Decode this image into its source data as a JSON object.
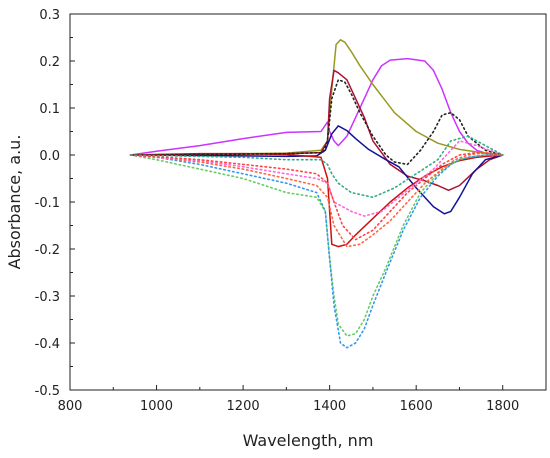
{
  "chart_data": {
    "type": "line",
    "title": "",
    "xlabel": "Wavelength, nm",
    "ylabel": "Absorbance, a.u.",
    "xlim": [
      800,
      1900
    ],
    "ylim": [
      -0.5,
      0.3
    ],
    "xticks": [
      800,
      1000,
      1200,
      1400,
      1600,
      1800
    ],
    "yticks": [
      -0.5,
      -0.4,
      -0.3,
      -0.2,
      -0.1,
      0.0,
      0.1,
      0.2,
      0.3
    ],
    "xtick_labels": [
      "800",
      "1000",
      "1200",
      "1400",
      "1600",
      "1800"
    ],
    "ytick_labels": [
      "-0.5",
      "-0.4",
      "-0.3",
      "-0.2",
      "-0.1",
      "0.0",
      "0.1",
      "0.2",
      "0.3"
    ],
    "grid": false,
    "legend": "none",
    "series": [
      {
        "color": "#cc33ff",
        "style": "solid",
        "x": [
          940,
          1000,
          1100,
          1200,
          1300,
          1380,
          1395,
          1400,
          1410,
          1420,
          1440,
          1460,
          1480,
          1500,
          1520,
          1540,
          1580,
          1620,
          1640,
          1660,
          1680,
          1700,
          1720,
          1740,
          1760,
          1780,
          1800
        ],
        "y": [
          0.0,
          0.008,
          0.02,
          0.035,
          0.048,
          0.05,
          0.07,
          0.05,
          0.03,
          0.02,
          0.04,
          0.08,
          0.12,
          0.16,
          0.19,
          0.202,
          0.205,
          0.2,
          0.18,
          0.14,
          0.09,
          0.05,
          0.025,
          0.01,
          0.004,
          0.001,
          0.0
        ]
      },
      {
        "color": "#999922",
        "style": "solid",
        "x": [
          940,
          1100,
          1200,
          1300,
          1380,
          1395,
          1405,
          1415,
          1425,
          1435,
          1450,
          1470,
          1500,
          1550,
          1600,
          1650,
          1700,
          1750,
          1800
        ],
        "y": [
          0.0,
          0.002,
          0.003,
          0.004,
          0.01,
          0.03,
          0.14,
          0.235,
          0.245,
          0.24,
          0.22,
          0.19,
          0.15,
          0.09,
          0.05,
          0.025,
          0.012,
          0.005,
          0.0
        ]
      },
      {
        "color": "#aa1133",
        "style": "solid",
        "x": [
          940,
          1100,
          1200,
          1300,
          1380,
          1395,
          1400,
          1410,
          1420,
          1440,
          1460,
          1480,
          1500,
          1540,
          1580,
          1620,
          1650,
          1675,
          1700,
          1740,
          1770,
          1800
        ],
        "y": [
          0.0,
          0.002,
          0.002,
          0.003,
          0.005,
          0.03,
          0.12,
          0.18,
          0.175,
          0.16,
          0.12,
          0.08,
          0.03,
          -0.02,
          -0.045,
          -0.055,
          -0.065,
          -0.075,
          -0.065,
          -0.03,
          -0.01,
          0.0
        ]
      },
      {
        "color": "#111199",
        "style": "solid",
        "x": [
          940,
          1100,
          1200,
          1300,
          1370,
          1390,
          1405,
          1420,
          1440,
          1460,
          1490,
          1530,
          1560,
          1600,
          1640,
          1665,
          1680,
          1700,
          1730,
          1760,
          1800
        ],
        "y": [
          0.0,
          -0.001,
          -0.002,
          -0.003,
          -0.002,
          0.01,
          0.045,
          0.062,
          0.052,
          0.035,
          0.012,
          -0.01,
          -0.025,
          -0.07,
          -0.11,
          -0.125,
          -0.12,
          -0.09,
          -0.04,
          -0.01,
          0.0
        ]
      },
      {
        "color": "#cc1111",
        "style": "solid",
        "x": [
          940,
          1000,
          1100,
          1200,
          1300,
          1380,
          1395,
          1405,
          1420,
          1440,
          1460,
          1500,
          1540,
          1580,
          1620,
          1660,
          1700,
          1740,
          1800
        ],
        "y": [
          0.0,
          0.001,
          0.003,
          0.003,
          0.001,
          -0.005,
          -0.05,
          -0.19,
          -0.195,
          -0.19,
          -0.17,
          -0.135,
          -0.1,
          -0.07,
          -0.045,
          -0.025,
          -0.012,
          -0.005,
          0.0
        ]
      },
      {
        "color": "#222222",
        "style": "dotted",
        "x": [
          940,
          1100,
          1200,
          1300,
          1385,
          1395,
          1405,
          1420,
          1435,
          1450,
          1470,
          1500,
          1530,
          1550,
          1580,
          1610,
          1640,
          1660,
          1680,
          1700,
          1720,
          1760,
          1800
        ],
        "y": [
          0.0,
          0.001,
          0.002,
          0.003,
          0.005,
          0.03,
          0.12,
          0.16,
          0.155,
          0.13,
          0.09,
          0.04,
          0.0,
          -0.015,
          -0.02,
          0.01,
          0.05,
          0.085,
          0.09,
          0.075,
          0.04,
          0.01,
          0.0
        ]
      },
      {
        "color": "#66cc66",
        "style": "dotted",
        "x": [
          940,
          1000,
          1100,
          1200,
          1300,
          1370,
          1390,
          1400,
          1410,
          1420,
          1440,
          1460,
          1480,
          1500,
          1530,
          1570,
          1610,
          1650,
          1680,
          1700,
          1720,
          1760,
          1800
        ],
        "y": [
          0.0,
          -0.01,
          -0.03,
          -0.05,
          -0.08,
          -0.09,
          -0.12,
          -0.22,
          -0.3,
          -0.36,
          -0.385,
          -0.38,
          -0.35,
          -0.3,
          -0.24,
          -0.15,
          -0.08,
          -0.04,
          -0.02,
          -0.01,
          -0.005,
          0.0,
          0.0
        ]
      },
      {
        "color": "#3399ee",
        "style": "dotted",
        "x": [
          940,
          1000,
          1100,
          1200,
          1300,
          1370,
          1390,
          1400,
          1410,
          1425,
          1440,
          1460,
          1480,
          1500,
          1530,
          1570,
          1610,
          1650,
          1680,
          1700,
          1720,
          1760,
          1800
        ],
        "y": [
          0.0,
          -0.005,
          -0.02,
          -0.04,
          -0.06,
          -0.08,
          -0.12,
          -0.22,
          -0.32,
          -0.4,
          -0.41,
          -0.4,
          -0.37,
          -0.32,
          -0.25,
          -0.16,
          -0.09,
          -0.045,
          -0.02,
          -0.01,
          -0.005,
          0.0,
          0.0
        ]
      },
      {
        "color": "#ff6644",
        "style": "dotted",
        "x": [
          940,
          1000,
          1100,
          1200,
          1300,
          1370,
          1395,
          1410,
          1440,
          1470,
          1500,
          1540,
          1580,
          1620,
          1660,
          1690,
          1720,
          1760,
          1800
        ],
        "y": [
          0.0,
          -0.005,
          -0.015,
          -0.03,
          -0.05,
          -0.065,
          -0.09,
          -0.15,
          -0.195,
          -0.19,
          -0.17,
          -0.14,
          -0.1,
          -0.06,
          -0.03,
          -0.01,
          0.0,
          0.005,
          0.0
        ]
      },
      {
        "color": "#ff66dd",
        "style": "dotted",
        "x": [
          940,
          1000,
          1100,
          1200,
          1300,
          1370,
          1395,
          1410,
          1430,
          1450,
          1480,
          1520,
          1560,
          1600,
          1640,
          1680,
          1700,
          1740,
          1800
        ],
        "y": [
          0.0,
          -0.005,
          -0.012,
          -0.025,
          -0.04,
          -0.05,
          -0.06,
          -0.1,
          -0.11,
          -0.12,
          -0.13,
          -0.12,
          -0.09,
          -0.06,
          -0.03,
          0.01,
          0.03,
          0.02,
          0.0
        ]
      },
      {
        "color": "#ff4444",
        "style": "dotted",
        "x": [
          940,
          1100,
          1200,
          1300,
          1370,
          1395,
          1410,
          1430,
          1460,
          1500,
          1540,
          1580,
          1620,
          1660,
          1700,
          1740,
          1800
        ],
        "y": [
          0.0,
          -0.01,
          -0.02,
          -0.03,
          -0.04,
          -0.06,
          -0.1,
          -0.15,
          -0.18,
          -0.16,
          -0.12,
          -0.08,
          -0.05,
          -0.02,
          0.0,
          0.005,
          0.0
        ]
      },
      {
        "color": "#33aa88",
        "style": "dotted",
        "x": [
          940,
          1100,
          1200,
          1300,
          1380,
          1395,
          1405,
          1420,
          1450,
          1500,
          1550,
          1600,
          1650,
          1680,
          1720,
          1760,
          1800
        ],
        "y": [
          0.0,
          -0.003,
          -0.005,
          -0.01,
          -0.01,
          -0.02,
          -0.04,
          -0.06,
          -0.08,
          -0.09,
          -0.07,
          -0.04,
          -0.01,
          0.03,
          0.04,
          0.02,
          0.0
        ]
      }
    ]
  }
}
